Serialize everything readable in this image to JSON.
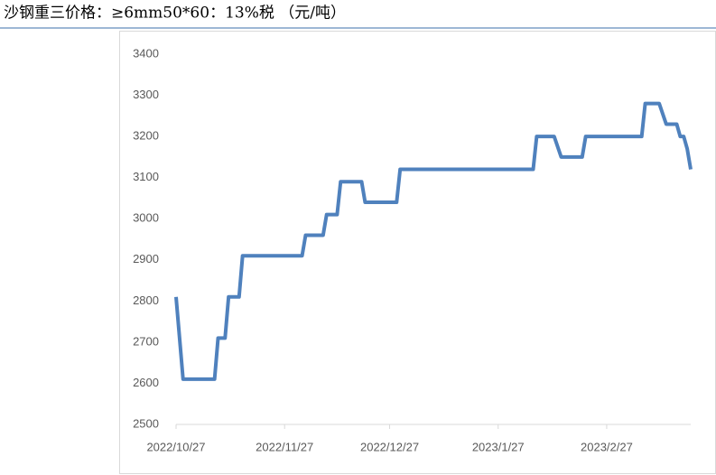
{
  "chart_data": {
    "type": "line",
    "title": "沙钢重三价格：≥6mm50*60：13%税 （元/吨）",
    "x": [
      "2022/10/27",
      "2022/10/29",
      "2022/11/7",
      "2022/11/8",
      "2022/11/10",
      "2022/11/11",
      "2022/11/14",
      "2022/11/15",
      "2022/12/2",
      "2022/12/3",
      "2022/12/8",
      "2022/12/9",
      "2022/12/12",
      "2022/12/13",
      "2022/12/19",
      "2022/12/20",
      "2022/12/29",
      "2022/12/30",
      "2023/2/6",
      "2023/2/7",
      "2023/2/12",
      "2023/2/14",
      "2023/2/20",
      "2023/2/21",
      "2023/3/9",
      "2023/3/10",
      "2023/3/14",
      "2023/3/16",
      "2023/3/19",
      "2023/3/20",
      "2023/3/21",
      "2023/3/22",
      "2023/3/23"
    ],
    "series": [
      {
        "name": "沙钢重三价格",
        "color": "#4f81bd",
        "values": [
          2810,
          2610,
          2610,
          2710,
          2710,
          2810,
          2810,
          2910,
          2910,
          2960,
          2960,
          3010,
          3010,
          3090,
          3090,
          3040,
          3040,
          3120,
          3120,
          3200,
          3200,
          3150,
          3150,
          3200,
          3200,
          3280,
          3280,
          3230,
          3230,
          3200,
          3200,
          3170,
          3120
        ]
      }
    ],
    "xlim": [
      "2022/10/27",
      "2023/3/23"
    ],
    "xticks": [
      "2022/10/27",
      "2022/11/27",
      "2022/12/27",
      "2023/1/27",
      "2023/2/27"
    ],
    "ylim": [
      2500,
      3400
    ],
    "yticks": [
      2500,
      2600,
      2700,
      2800,
      2900,
      3000,
      3100,
      3200,
      3300,
      3400
    ],
    "grid": false
  }
}
